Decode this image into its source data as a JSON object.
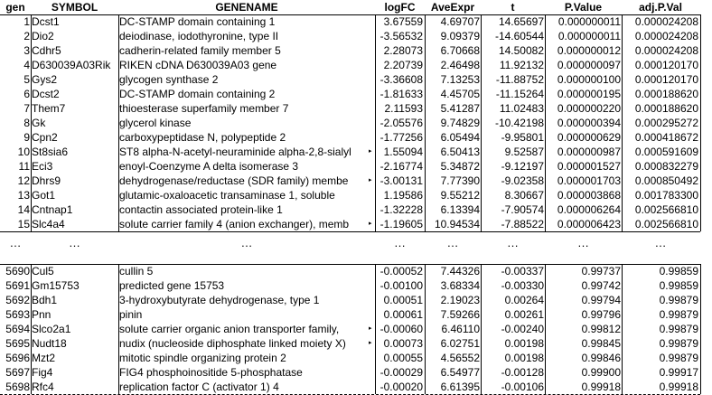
{
  "table": {
    "columns": [
      "gen",
      "SYMBOL",
      "GENENAME",
      "logFC",
      "AveExpr",
      "t",
      "P.Value",
      "adj.P.Val"
    ],
    "top_rows": [
      [
        "1",
        "Dcst1",
        "DC-STAMP domain containing 1",
        "3.67559",
        "4.69707",
        "14.65697",
        "0.000000011",
        "0.000024208"
      ],
      [
        "2",
        "Dio2",
        "deiodinase, iodothyronine, type II",
        "-3.56532",
        "9.09379",
        "-14.60544",
        "0.000000011",
        "0.000024208"
      ],
      [
        "3",
        "Cdhr5",
        "cadherin-related family member 5",
        "2.28073",
        "6.70668",
        "14.50082",
        "0.000000012",
        "0.000024208"
      ],
      [
        "4",
        "D630039A03Rik",
        "RIKEN cDNA D630039A03 gene",
        "2.20739",
        "2.46498",
        "11.92132",
        "0.000000097",
        "0.000120170"
      ],
      [
        "5",
        "Gys2",
        "glycogen synthase 2",
        "-3.36608",
        "7.13253",
        "-11.88752",
        "0.000000100",
        "0.000120170"
      ],
      [
        "6",
        "Dcst2",
        "DC-STAMP domain containing 2",
        "-1.81633",
        "4.45705",
        "-11.15264",
        "0.000000195",
        "0.000188620"
      ],
      [
        "7",
        "Them7",
        "thioesterase superfamily member 7",
        "2.11593",
        "5.41287",
        "11.02483",
        "0.000000220",
        "0.000188620"
      ],
      [
        "8",
        "Gk",
        "glycerol kinase",
        "-2.05576",
        "9.74829",
        "-10.42198",
        "0.000000394",
        "0.000295272"
      ],
      [
        "9",
        "Cpn2",
        "carboxypeptidase N, polypeptide 2",
        "-1.77256",
        "6.05494",
        "-9.95801",
        "0.000000629",
        "0.000418672"
      ],
      [
        "10",
        "St8sia6",
        "ST8 alpha-N-acetyl-neuraminide alpha-2,8-sialyl",
        "1.55094",
        "6.50413",
        "9.52587",
        "0.000000987",
        "0.000591609"
      ],
      [
        "11",
        "Eci3",
        "enoyl-Coenzyme A delta isomerase 3",
        "-2.16774",
        "5.34872",
        "-9.12197",
        "0.000001527",
        "0.000832279"
      ],
      [
        "12",
        "Dhrs9",
        "dehydrogenase/reductase (SDR family) membe",
        "-3.00131",
        "7.77390",
        "-9.02358",
        "0.000001703",
        "0.000850492"
      ],
      [
        "13",
        "Got1",
        "glutamic-oxaloacetic transaminase 1, soluble",
        "1.19586",
        "9.55212",
        "8.30667",
        "0.000003868",
        "0.001783300"
      ],
      [
        "14",
        "Cntnap1",
        "contactin associated protein-like 1",
        "-1.32228",
        "6.13394",
        "-7.90574",
        "0.000006264",
        "0.002566810"
      ],
      [
        "15",
        "Slc4a4",
        "solute carrier family 4 (anion exchanger), memb",
        "-1.19605",
        "10.94534",
        "-7.88522",
        "0.000006423",
        "0.002566810"
      ]
    ],
    "ellipsis": [
      "…",
      "…",
      "…",
      "…",
      "…",
      "…",
      "…",
      "…"
    ],
    "bottom_rows": [
      [
        "5690",
        "Cul5",
        "cullin 5",
        "-0.00052",
        "7.44326",
        "-0.00337",
        "0.99737",
        "0.99859"
      ],
      [
        "5691",
        "Gm15753",
        "predicted gene 15753",
        "-0.00100",
        "3.68334",
        "-0.00330",
        "0.99742",
        "0.99859"
      ],
      [
        "5692",
        "Bdh1",
        "3-hydroxybutyrate dehydrogenase, type 1",
        "0.00051",
        "2.19023",
        "0.00264",
        "0.99794",
        "0.99879"
      ],
      [
        "5693",
        "Pnn",
        "pinin",
        "0.00061",
        "7.59266",
        "0.00261",
        "0.99796",
        "0.99879"
      ],
      [
        "5694",
        "Slco2a1",
        "solute carrier organic anion transporter family,",
        "-0.00060",
        "6.46110",
        "-0.00240",
        "0.99812",
        "0.99879"
      ],
      [
        "5695",
        "Nudt18",
        "nudix (nucleoside diphosphate linked moiety X)",
        "0.00073",
        "6.02751",
        "0.00198",
        "0.99845",
        "0.99879"
      ],
      [
        "5696",
        "Mzt2",
        "mitotic spindle organizing protein 2",
        "0.00055",
        "4.56552",
        "0.00198",
        "0.99846",
        "0.99879"
      ],
      [
        "5697",
        "Fig4",
        "FIG4 phosphoinositide 5-phosphatase",
        "-0.00029",
        "6.54977",
        "-0.00128",
        "0.99900",
        "0.99917"
      ],
      [
        "5698",
        "Rfc4",
        "replication factor C (activator 1) 4",
        "-0.00020",
        "6.61395",
        "-0.00106",
        "0.99918",
        "0.99918"
      ]
    ],
    "truncated_marker": "▸"
  }
}
